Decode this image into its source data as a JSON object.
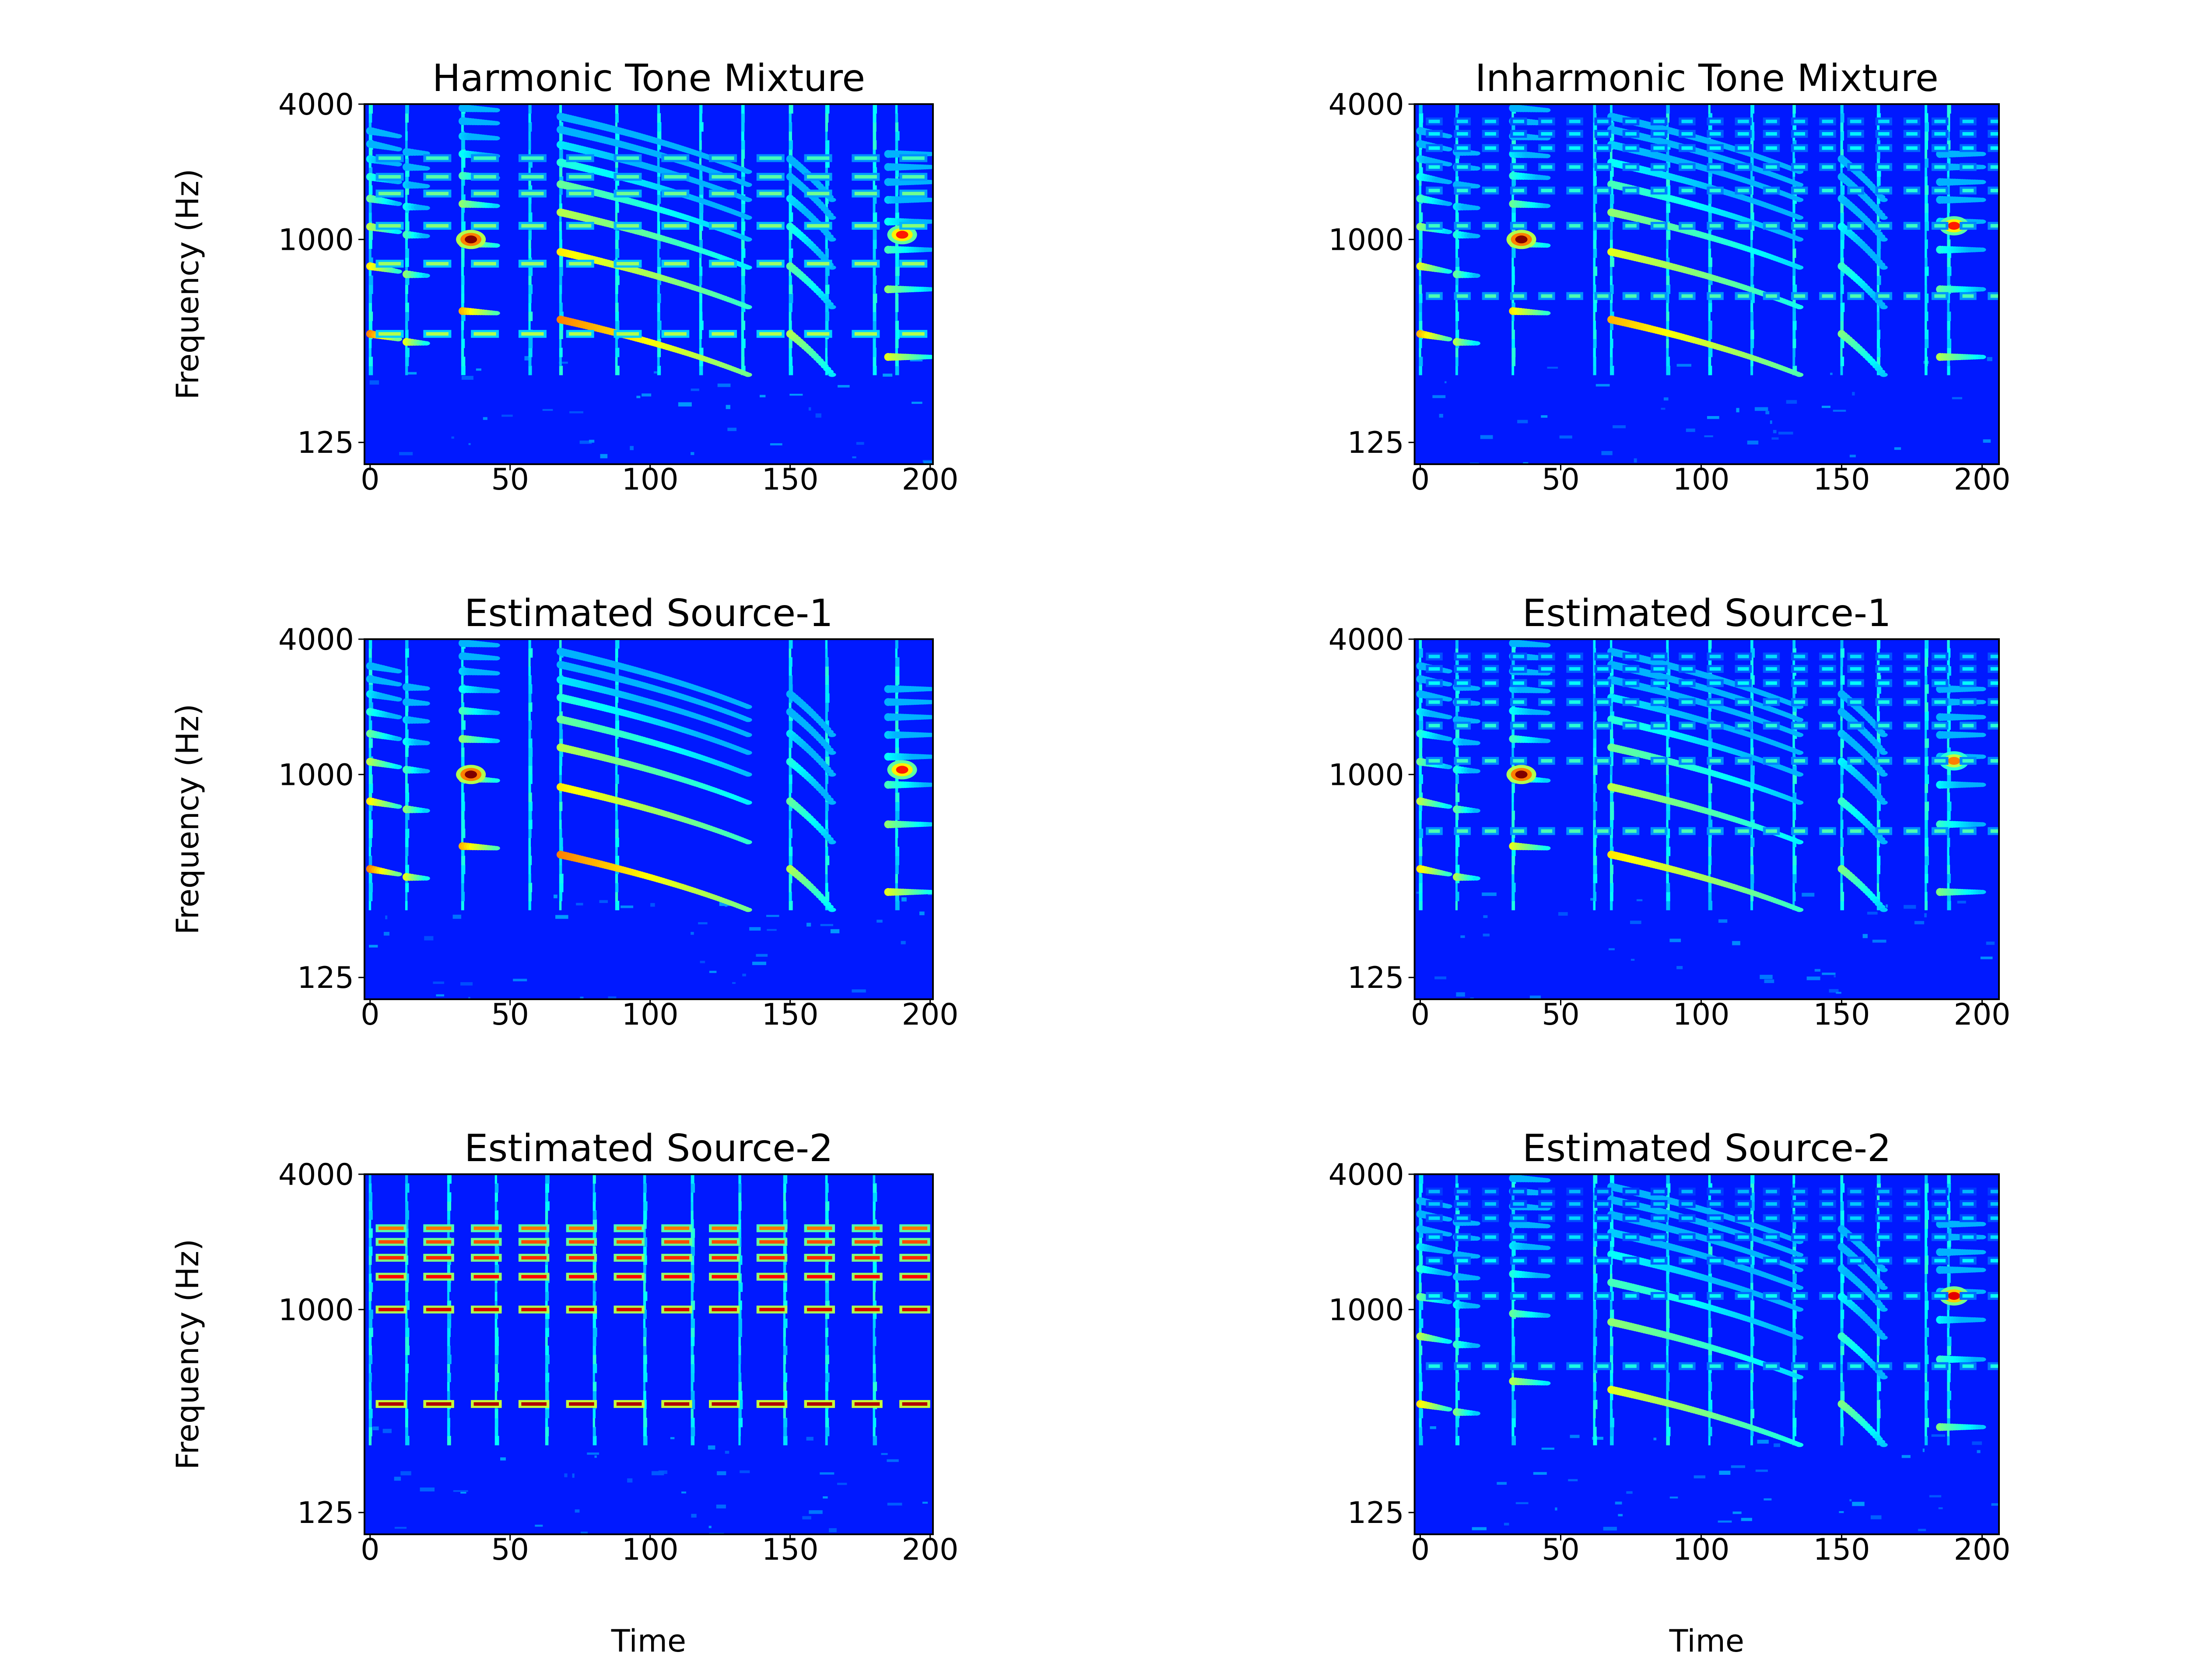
{
  "figure": {
    "colormap": [
      "#00007f",
      "#0000ff",
      "#007fff",
      "#00ffff",
      "#7fff7f",
      "#ffff00",
      "#ff7f00",
      "#ff0000",
      "#7f0000"
    ],
    "background_value": 0.15
  },
  "chart_data": [
    {
      "type": "heatmap",
      "title": "Harmonic Tone Mixture",
      "xlabel": "",
      "ylabel": "Frequency (Hz)",
      "xlim": [
        -2,
        201
      ],
      "ylim": [
        100,
        4000
      ],
      "yscale": "log2",
      "xticks": [
        0,
        50,
        100,
        150,
        200
      ],
      "yticks": [
        125,
        1000,
        4000
      ],
      "onsets": [
        0,
        13,
        33,
        57,
        68,
        88,
        103,
        118,
        133,
        150,
        163,
        180,
        188
      ],
      "components": [
        {
          "kind": "glide",
          "t0": 0,
          "t1": 10,
          "f0": 380,
          "f1": 360,
          "v": 0.75,
          "harm": 8
        },
        {
          "kind": "glide",
          "t0": 13,
          "t1": 20,
          "f0": 350,
          "f1": 345,
          "v": 0.6,
          "harm": 7
        },
        {
          "kind": "glide",
          "t0": 33,
          "t1": 45,
          "f0": 480,
          "f1": 470,
          "v": 0.7,
          "harm": 8
        },
        {
          "kind": "blob",
          "t": 36,
          "f": 1000,
          "v": 1.0
        },
        {
          "kind": "glide",
          "t0": 68,
          "t1": 135,
          "f0": 440,
          "f1": 250,
          "v": 0.75,
          "harm": 8
        },
        {
          "kind": "glide",
          "t0": 150,
          "t1": 165,
          "f0": 380,
          "f1": 250,
          "v": 0.55,
          "harm": 6
        },
        {
          "kind": "glide",
          "t0": 185,
          "t1": 200,
          "f0": 300,
          "f1": 300,
          "v": 0.6,
          "harm": 8
        },
        {
          "kind": "blob",
          "t": 190,
          "f": 1050,
          "v": 0.85
        },
        {
          "kind": "tone",
          "t0": 0,
          "t1": 200,
          "period": 17,
          "on": 10,
          "f": [
            380,
            780,
            1150,
            1600,
            1900,
            2300
          ],
          "v": 0.55
        }
      ]
    },
    {
      "type": "heatmap",
      "title": "Inharmonic Tone Mixture",
      "xlabel": "",
      "ylabel": "",
      "xlim": [
        -2,
        206
      ],
      "ylim": [
        100,
        4000
      ],
      "yscale": "log2",
      "xticks": [
        0,
        50,
        100,
        150,
        200
      ],
      "yticks": [
        125,
        1000,
        4000
      ],
      "onsets": [
        0,
        13,
        33,
        62,
        68,
        88,
        103,
        118,
        133,
        150,
        163,
        180,
        188
      ],
      "components": [
        {
          "kind": "glide",
          "t0": 0,
          "t1": 10,
          "f0": 380,
          "f1": 360,
          "v": 0.7,
          "harm": 8
        },
        {
          "kind": "glide",
          "t0": 13,
          "t1": 20,
          "f0": 350,
          "f1": 345,
          "v": 0.55,
          "harm": 7
        },
        {
          "kind": "glide",
          "t0": 33,
          "t1": 45,
          "f0": 480,
          "f1": 470,
          "v": 0.65,
          "harm": 8
        },
        {
          "kind": "blob",
          "t": 36,
          "f": 1000,
          "v": 1.0
        },
        {
          "kind": "glide",
          "t0": 68,
          "t1": 135,
          "f0": 440,
          "f1": 250,
          "v": 0.7,
          "harm": 8
        },
        {
          "kind": "glide",
          "t0": 150,
          "t1": 165,
          "f0": 380,
          "f1": 250,
          "v": 0.5,
          "harm": 6
        },
        {
          "kind": "glide",
          "t0": 185,
          "t1": 200,
          "f0": 300,
          "f1": 300,
          "v": 0.55,
          "harm": 8
        },
        {
          "kind": "blob",
          "t": 190,
          "f": 1150,
          "v": 0.85
        },
        {
          "kind": "tone",
          "t0": 0,
          "t1": 206,
          "period": 10,
          "on": 6,
          "f": [
            560,
            1150,
            1650,
            2100,
            2550,
            2950,
            3350
          ],
          "v": 0.45
        }
      ]
    },
    {
      "type": "heatmap",
      "title": "Estimated Source-1",
      "xlabel": "",
      "ylabel": "Frequency (Hz)",
      "xlim": [
        -2,
        201
      ],
      "ylim": [
        100,
        4000
      ],
      "yscale": "log2",
      "xticks": [
        0,
        50,
        100,
        150,
        200
      ],
      "yticks": [
        125,
        1000,
        4000
      ],
      "onsets": [
        0,
        13,
        33,
        57,
        68,
        88,
        150,
        163,
        188
      ],
      "components": [
        {
          "kind": "glide",
          "t0": 0,
          "t1": 10,
          "f0": 380,
          "f1": 360,
          "v": 0.75,
          "harm": 8
        },
        {
          "kind": "glide",
          "t0": 13,
          "t1": 20,
          "f0": 350,
          "f1": 345,
          "v": 0.6,
          "harm": 7
        },
        {
          "kind": "glide",
          "t0": 33,
          "t1": 45,
          "f0": 480,
          "f1": 470,
          "v": 0.7,
          "harm": 8
        },
        {
          "kind": "blob",
          "t": 36,
          "f": 1000,
          "v": 1.0
        },
        {
          "kind": "glide",
          "t0": 68,
          "t1": 135,
          "f0": 440,
          "f1": 250,
          "v": 0.75,
          "harm": 8
        },
        {
          "kind": "glide",
          "t0": 150,
          "t1": 165,
          "f0": 380,
          "f1": 250,
          "v": 0.55,
          "harm": 6
        },
        {
          "kind": "glide",
          "t0": 185,
          "t1": 200,
          "f0": 300,
          "f1": 300,
          "v": 0.6,
          "harm": 8
        },
        {
          "kind": "blob",
          "t": 190,
          "f": 1050,
          "v": 0.85
        }
      ]
    },
    {
      "type": "heatmap",
      "title": "Estimated Source-1",
      "xlabel": "",
      "ylabel": "",
      "xlim": [
        -2,
        206
      ],
      "ylim": [
        100,
        4000
      ],
      "yscale": "log2",
      "xticks": [
        0,
        50,
        100,
        150,
        200
      ],
      "yticks": [
        125,
        1000,
        4000
      ],
      "onsets": [
        0,
        13,
        33,
        62,
        68,
        88,
        103,
        118,
        133,
        150,
        163,
        180,
        188
      ],
      "components": [
        {
          "kind": "glide",
          "t0": 0,
          "t1": 10,
          "f0": 380,
          "f1": 360,
          "v": 0.65,
          "harm": 8
        },
        {
          "kind": "glide",
          "t0": 13,
          "t1": 20,
          "f0": 350,
          "f1": 345,
          "v": 0.55,
          "harm": 7
        },
        {
          "kind": "glide",
          "t0": 33,
          "t1": 45,
          "f0": 480,
          "f1": 470,
          "v": 0.6,
          "harm": 8
        },
        {
          "kind": "blob",
          "t": 36,
          "f": 1000,
          "v": 1.0
        },
        {
          "kind": "glide",
          "t0": 68,
          "t1": 135,
          "f0": 440,
          "f1": 250,
          "v": 0.65,
          "harm": 8
        },
        {
          "kind": "glide",
          "t0": 150,
          "t1": 165,
          "f0": 380,
          "f1": 250,
          "v": 0.5,
          "harm": 6
        },
        {
          "kind": "glide",
          "t0": 185,
          "t1": 200,
          "f0": 300,
          "f1": 300,
          "v": 0.5,
          "harm": 8
        },
        {
          "kind": "blob",
          "t": 190,
          "f": 1150,
          "v": 0.75
        },
        {
          "kind": "tone",
          "t0": 0,
          "t1": 206,
          "period": 10,
          "on": 6,
          "f": [
            560,
            1150,
            1650,
            2100,
            2550,
            2950,
            3350
          ],
          "v": 0.45
        }
      ]
    },
    {
      "type": "heatmap",
      "title": "Estimated Source-2",
      "xlabel": "Time",
      "ylabel": "Frequency (Hz)",
      "xlim": [
        -2,
        201
      ],
      "ylim": [
        100,
        4000
      ],
      "yscale": "log2",
      "xticks": [
        0,
        50,
        100,
        150,
        200
      ],
      "yticks": [
        125,
        1000,
        4000
      ],
      "onsets": [
        0,
        13,
        28,
        45,
        63,
        80,
        98,
        115,
        132,
        148,
        163,
        180
      ],
      "components": [
        {
          "kind": "tone",
          "t0": 0,
          "t1": 200,
          "period": 17,
          "on": 11,
          "f": [
            380,
            1000,
            1400,
            1700,
            2000,
            2300
          ],
          "v": 0.95
        }
      ]
    },
    {
      "type": "heatmap",
      "title": "Estimated Source-2",
      "xlabel": "Time",
      "ylabel": "",
      "xlim": [
        -2,
        206
      ],
      "ylim": [
        100,
        4000
      ],
      "yscale": "log2",
      "xticks": [
        0,
        50,
        100,
        150,
        200
      ],
      "yticks": [
        125,
        1000,
        4000
      ],
      "onsets": [
        0,
        13,
        33,
        62,
        68,
        88,
        103,
        118,
        133,
        150,
        163,
        180,
        188
      ],
      "components": [
        {
          "kind": "glide",
          "t0": 0,
          "t1": 10,
          "f0": 380,
          "f1": 360,
          "v": 0.65,
          "harm": 8
        },
        {
          "kind": "glide",
          "t0": 13,
          "t1": 20,
          "f0": 350,
          "f1": 345,
          "v": 0.5,
          "harm": 7
        },
        {
          "kind": "glide",
          "t0": 33,
          "t1": 45,
          "f0": 480,
          "f1": 470,
          "v": 0.55,
          "harm": 8
        },
        {
          "kind": "glide",
          "t0": 68,
          "t1": 135,
          "f0": 440,
          "f1": 250,
          "v": 0.6,
          "harm": 8
        },
        {
          "kind": "glide",
          "t0": 150,
          "t1": 165,
          "f0": 380,
          "f1": 250,
          "v": 0.5,
          "harm": 6
        },
        {
          "kind": "glide",
          "t0": 185,
          "t1": 200,
          "f0": 300,
          "f1": 300,
          "v": 0.5,
          "harm": 8
        },
        {
          "kind": "blob",
          "t": 190,
          "f": 1150,
          "v": 0.9
        },
        {
          "kind": "tone",
          "t0": 0,
          "t1": 206,
          "period": 10,
          "on": 6,
          "f": [
            560,
            1150,
            1650,
            2100,
            2550,
            2950,
            3350
          ],
          "v": 0.4
        }
      ]
    }
  ]
}
